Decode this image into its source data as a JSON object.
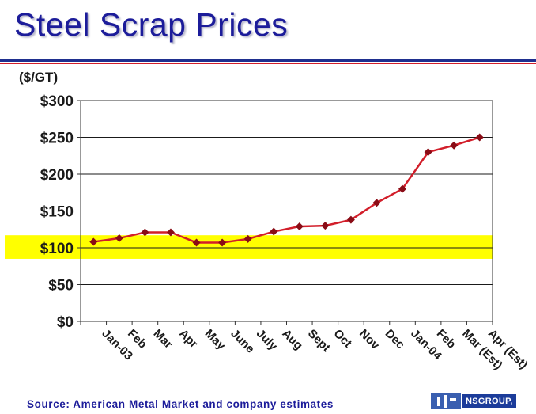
{
  "title": "Steel Scrap Prices",
  "unit_label": "($/GT)",
  "source": "Source:  American Metal Market and company estimates",
  "logo_text": "NSGROUP,",
  "colors": {
    "title": "#1c1c9a",
    "line": "#d21e2a",
    "marker": "#8a0c16",
    "highlight": "#ffff00",
    "grid": "#1a1a1a"
  },
  "chart_data": {
    "type": "line",
    "categories": [
      "Jan-03",
      "Feb",
      "Mar",
      "Apr",
      "May",
      "June",
      "July",
      "Aug",
      "Sept",
      "Oct",
      "Nov",
      "Dec",
      "Jan-04",
      "Feb",
      "Mar (Est)",
      "Apr (Est)"
    ],
    "series": [
      {
        "values": [
          108,
          113,
          121,
          121,
          107,
          107,
          112,
          122,
          129,
          130,
          138,
          161,
          180,
          230,
          239,
          250
        ]
      }
    ],
    "yticks": [
      "$0",
      "$50",
      "$100",
      "$150",
      "$200",
      "$250",
      "$300"
    ],
    "ylim": [
      0,
      300
    ],
    "highlight_band": [
      85,
      117
    ],
    "grid": true,
    "legend": false
  }
}
